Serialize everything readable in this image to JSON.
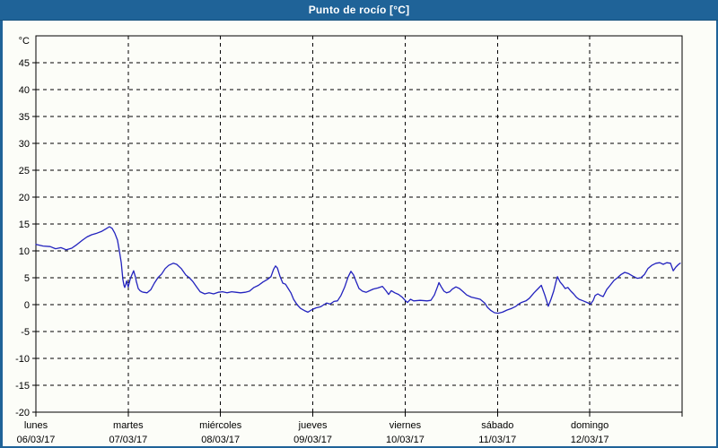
{
  "window": {
    "title": "Punto de rocío [°C]"
  },
  "colors": {
    "titlebar": "#1f6398",
    "titlebar_text": "#ffffff",
    "background": "#fcfdf8",
    "frame": "#000000",
    "grid": "#000000",
    "line": "#2222be"
  },
  "chart_data": {
    "type": "line",
    "title": "Punto de rocío [°C]",
    "ylabel": "°C",
    "ylim": [
      -20,
      50
    ],
    "y_ticks": [
      45,
      40,
      35,
      30,
      25,
      20,
      15,
      10,
      5,
      0,
      -5,
      -10,
      -15,
      -20
    ],
    "x_unit": "hours_from_monday_00h",
    "xlim": [
      0,
      168
    ],
    "grid": "dashed",
    "legend": "none",
    "x_day_labels": [
      {
        "name": "lunes",
        "date": "06/03/17",
        "t": 0
      },
      {
        "name": "martes",
        "date": "07/03/17",
        "t": 24
      },
      {
        "name": "miércoles",
        "date": "08/03/17",
        "t": 48
      },
      {
        "name": "jueves",
        "date": "09/03/17",
        "t": 72
      },
      {
        "name": "viernes",
        "date": "10/03/17",
        "t": 96
      },
      {
        "name": "sábado",
        "date": "11/03/17",
        "t": 120
      },
      {
        "name": "domingo",
        "date": "12/03/17",
        "t": 144
      }
    ],
    "series": [
      {
        "name": "Punto de rocío",
        "color": "#2222be",
        "points": [
          [
            0,
            11.2
          ],
          [
            1.9,
            10.9
          ],
          [
            3.7,
            10.8
          ],
          [
            5.1,
            10.4
          ],
          [
            6.5,
            10.6
          ],
          [
            7.9,
            10.2
          ],
          [
            9.3,
            10.5
          ],
          [
            10.7,
            11.2
          ],
          [
            12.1,
            12.0
          ],
          [
            13.3,
            12.6
          ],
          [
            14.5,
            13.0
          ],
          [
            15.9,
            13.3
          ],
          [
            17.0,
            13.6
          ],
          [
            18.2,
            14.1
          ],
          [
            19.1,
            14.5
          ],
          [
            19.8,
            14.2
          ],
          [
            20.5,
            13.3
          ],
          [
            21.2,
            12.0
          ],
          [
            21.7,
            10.0
          ],
          [
            22.2,
            7.8
          ],
          [
            22.6,
            4.7
          ],
          [
            22.9,
            3.6
          ],
          [
            23.1,
            3.2
          ],
          [
            23.4,
            3.9
          ],
          [
            23.6,
            4.4
          ],
          [
            23.8,
            3.8
          ],
          [
            24.0,
            3.3
          ],
          [
            24.3,
            4.1
          ],
          [
            24.5,
            4.7
          ],
          [
            24.8,
            5.3
          ],
          [
            25.1,
            5.8
          ],
          [
            25.4,
            6.3
          ],
          [
            25.7,
            5.6
          ],
          [
            25.9,
            5.1
          ],
          [
            26.1,
            4.3
          ],
          [
            26.4,
            3.6
          ],
          [
            26.6,
            3.0
          ],
          [
            27.1,
            2.6
          ],
          [
            27.5,
            2.4
          ],
          [
            28.0,
            2.3
          ],
          [
            28.9,
            2.2
          ],
          [
            29.9,
            2.8
          ],
          [
            30.8,
            4.0
          ],
          [
            31.7,
            5.0
          ],
          [
            32.7,
            5.7
          ],
          [
            33.6,
            6.7
          ],
          [
            34.5,
            7.3
          ],
          [
            35.7,
            7.7
          ],
          [
            36.6,
            7.5
          ],
          [
            37.8,
            6.7
          ],
          [
            39.0,
            5.5
          ],
          [
            39.9,
            5.0
          ],
          [
            40.8,
            4.3
          ],
          [
            41.8,
            3.3
          ],
          [
            42.7,
            2.4
          ],
          [
            43.9,
            2.0
          ],
          [
            45.0,
            2.2
          ],
          [
            46.2,
            2.0
          ],
          [
            47.4,
            2.3
          ],
          [
            48.5,
            2.4
          ],
          [
            49.7,
            2.2
          ],
          [
            50.9,
            2.4
          ],
          [
            52.0,
            2.3
          ],
          [
            53.2,
            2.2
          ],
          [
            54.4,
            2.3
          ],
          [
            55.5,
            2.5
          ],
          [
            56.7,
            3.2
          ],
          [
            57.9,
            3.6
          ],
          [
            59.0,
            4.2
          ],
          [
            60.2,
            4.7
          ],
          [
            61.1,
            5.2
          ],
          [
            61.8,
            6.6
          ],
          [
            62.3,
            7.2
          ],
          [
            62.8,
            6.8
          ],
          [
            63.5,
            5.2
          ],
          [
            64.2,
            4.0
          ],
          [
            64.9,
            3.8
          ],
          [
            65.6,
            3.0
          ],
          [
            66.3,
            2.2
          ],
          [
            67.0,
            1.0
          ],
          [
            67.9,
            0.0
          ],
          [
            68.8,
            -0.7
          ],
          [
            69.8,
            -1.1
          ],
          [
            70.7,
            -1.4
          ],
          [
            71.6,
            -1.0
          ],
          [
            72.8,
            -0.6
          ],
          [
            74.0,
            -0.4
          ],
          [
            74.9,
            0.0
          ],
          [
            75.6,
            0.3
          ],
          [
            76.5,
            0.1
          ],
          [
            77.5,
            0.6
          ],
          [
            78.4,
            0.7
          ],
          [
            79.3,
            1.7
          ],
          [
            80.3,
            3.3
          ],
          [
            81.2,
            5.2
          ],
          [
            81.9,
            6.2
          ],
          [
            82.6,
            5.5
          ],
          [
            83.3,
            4.2
          ],
          [
            84.0,
            3.0
          ],
          [
            84.9,
            2.5
          ],
          [
            85.9,
            2.3
          ],
          [
            86.8,
            2.6
          ],
          [
            87.7,
            2.9
          ],
          [
            88.9,
            3.1
          ],
          [
            90.1,
            3.4
          ],
          [
            91.0,
            2.6
          ],
          [
            91.7,
            1.9
          ],
          [
            92.4,
            2.6
          ],
          [
            93.3,
            2.2
          ],
          [
            94.3,
            1.9
          ],
          [
            95.2,
            1.4
          ],
          [
            96.1,
            0.7
          ],
          [
            96.6,
            0.4
          ],
          [
            97.4,
            1.0
          ],
          [
            98.2,
            0.7
          ],
          [
            99.9,
            0.8
          ],
          [
            101.7,
            0.7
          ],
          [
            102.7,
            0.8
          ],
          [
            103.6,
            1.8
          ],
          [
            104.4,
            3.3
          ],
          [
            104.8,
            4.1
          ],
          [
            105.4,
            3.3
          ],
          [
            106.1,
            2.5
          ],
          [
            106.8,
            2.2
          ],
          [
            107.6,
            2.4
          ],
          [
            108.3,
            2.9
          ],
          [
            109.2,
            3.3
          ],
          [
            110.1,
            3.0
          ],
          [
            111.1,
            2.4
          ],
          [
            112.0,
            1.8
          ],
          [
            113.2,
            1.4
          ],
          [
            114.3,
            1.2
          ],
          [
            115.5,
            1.0
          ],
          [
            116.7,
            0.3
          ],
          [
            117.4,
            -0.5
          ],
          [
            118.3,
            -1.1
          ],
          [
            119.2,
            -1.5
          ],
          [
            120.2,
            -1.6
          ],
          [
            121.3,
            -1.4
          ],
          [
            122.5,
            -1.0
          ],
          [
            123.7,
            -0.7
          ],
          [
            124.8,
            -0.3
          ],
          [
            125.5,
            0.1
          ],
          [
            126.2,
            0.4
          ],
          [
            127.4,
            0.7
          ],
          [
            128.3,
            1.2
          ],
          [
            129.5,
            2.2
          ],
          [
            130.6,
            3.0
          ],
          [
            131.4,
            3.6
          ],
          [
            132.3,
            1.8
          ],
          [
            133.2,
            -0.3
          ],
          [
            133.9,
            1.0
          ],
          [
            134.6,
            2.5
          ],
          [
            135.2,
            4.2
          ],
          [
            135.6,
            5.2
          ],
          [
            136.3,
            4.2
          ],
          [
            136.9,
            3.7
          ],
          [
            137.6,
            3.0
          ],
          [
            138.3,
            3.2
          ],
          [
            139.1,
            2.5
          ],
          [
            139.8,
            2.0
          ],
          [
            140.5,
            1.4
          ],
          [
            141.2,
            1.0
          ],
          [
            142.3,
            0.7
          ],
          [
            143.3,
            0.4
          ],
          [
            144.2,
            0.1
          ],
          [
            144.9,
            0.8
          ],
          [
            145.4,
            1.7
          ],
          [
            146.1,
            2.0
          ],
          [
            146.8,
            1.7
          ],
          [
            147.5,
            1.5
          ],
          [
            148.4,
            2.8
          ],
          [
            149.3,
            3.6
          ],
          [
            150.3,
            4.5
          ],
          [
            151.2,
            5.0
          ],
          [
            152.1,
            5.6
          ],
          [
            153.1,
            6.0
          ],
          [
            154.0,
            5.8
          ],
          [
            155.2,
            5.3
          ],
          [
            156.3,
            4.9
          ],
          [
            157.3,
            5.0
          ],
          [
            158.2,
            5.6
          ],
          [
            159.1,
            6.7
          ],
          [
            160.1,
            7.3
          ],
          [
            161.2,
            7.7
          ],
          [
            162.2,
            7.8
          ],
          [
            163.1,
            7.5
          ],
          [
            164.0,
            7.8
          ],
          [
            165.0,
            7.7
          ],
          [
            165.7,
            6.3
          ],
          [
            166.4,
            7.0
          ],
          [
            167.1,
            7.5
          ],
          [
            167.5,
            7.7
          ]
        ]
      }
    ]
  }
}
